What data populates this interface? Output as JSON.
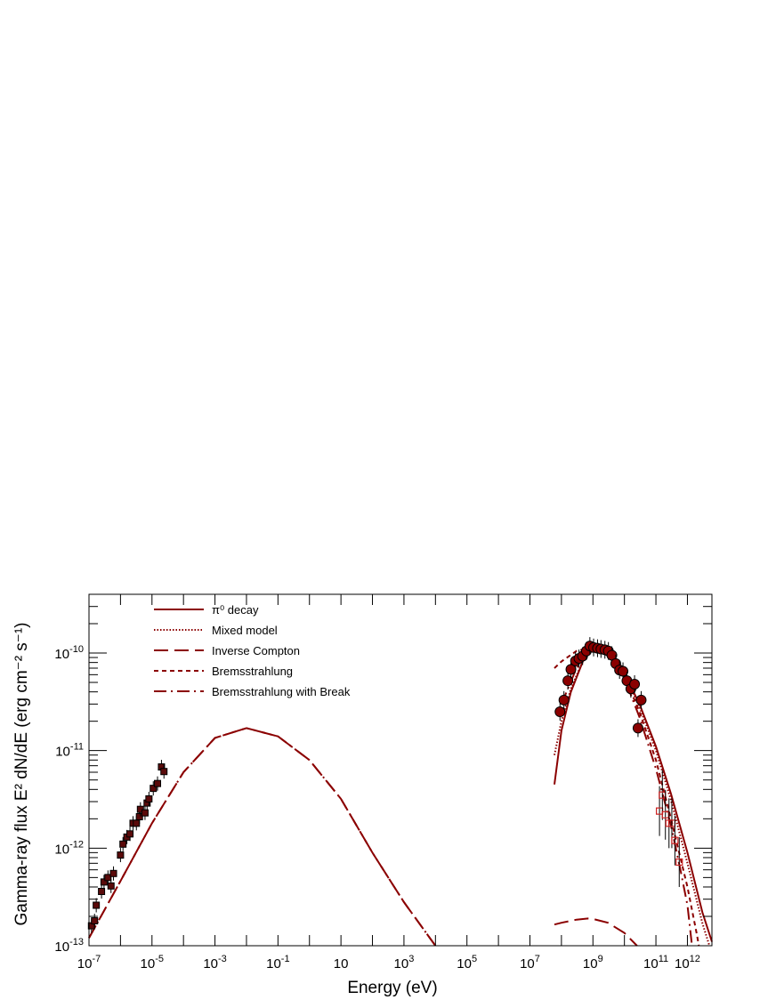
{
  "colors": {
    "model": "#8b0000",
    "marker_fill": "#8b0000",
    "axis": "#000000",
    "error_bar": "#000000",
    "open_marker": "#cc2222"
  },
  "chart_data": {
    "type": "scatter",
    "title": "",
    "xlabel": "Energy (eV)",
    "ylabel": "Gamma-ray flux E² dN/dE (erg cm⁻² s⁻¹)",
    "xscale": "log",
    "yscale": "log",
    "xlim": [
      1e-07,
      6000000000000.0
    ],
    "ylim": [
      1e-13,
      4e-10
    ],
    "grid": false,
    "legend_position": "top-left",
    "x_ticks": [
      {
        "value": 1e-07,
        "base": "10",
        "exp": "-7"
      },
      {
        "value": 1e-05,
        "base": "10",
        "exp": "-5"
      },
      {
        "value": 0.001,
        "base": "10",
        "exp": "-3"
      },
      {
        "value": 0.1,
        "base": "10",
        "exp": "-1"
      },
      {
        "value": 10,
        "base": "10",
        "exp": ""
      },
      {
        "value": 1000.0,
        "base": "10",
        "exp": "3"
      },
      {
        "value": 100000.0,
        "base": "10",
        "exp": "5"
      },
      {
        "value": 10000000.0,
        "base": "10",
        "exp": "7"
      },
      {
        "value": 1000000000.0,
        "base": "10",
        "exp": "9"
      },
      {
        "value": 100000000000.0,
        "base": "10",
        "exp": "11"
      },
      {
        "value": 1000000000000.0,
        "base": "10",
        "exp": "12"
      }
    ],
    "y_ticks": [
      {
        "value": 1e-13,
        "base": "10",
        "exp": "-13"
      },
      {
        "value": 1e-12,
        "base": "10",
        "exp": "-12"
      },
      {
        "value": 1e-11,
        "base": "10",
        "exp": "-11"
      },
      {
        "value": 1e-10,
        "base": "10",
        "exp": "-10"
      }
    ],
    "series": [
      {
        "name": "π⁰ decay",
        "style": "solid",
        "points": [
          [
            60000000.0,
            4.5e-12
          ],
          [
            100000000.0,
            1.6e-11
          ],
          [
            200000000.0,
            4e-11
          ],
          [
            500000000.0,
            8.5e-11
          ],
          [
            1000000000.0,
            1.1e-10
          ],
          [
            3000000000.0,
            1e-10
          ],
          [
            10000000000.0,
            6.2e-11
          ],
          [
            30000000000.0,
            3e-11
          ],
          [
            100000000000.0,
            1.1e-11
          ],
          [
            300000000000.0,
            3.6e-12
          ],
          [
            1000000000000.0,
            9e-13
          ],
          [
            3000000000000.0,
            2.2e-13
          ],
          [
            6000000000000.0,
            1.1e-13
          ]
        ]
      },
      {
        "name": "Mixed model",
        "style": "dotted",
        "points": [
          [
            60000000.0,
            9e-12
          ],
          [
            100000000.0,
            2e-11
          ],
          [
            200000000.0,
            4.3e-11
          ],
          [
            500000000.0,
            8.6e-11
          ],
          [
            1000000000.0,
            1.1e-10
          ],
          [
            3000000000.0,
            1e-10
          ],
          [
            10000000000.0,
            6e-11
          ],
          [
            30000000000.0,
            2.8e-11
          ],
          [
            100000000000.0,
            1e-11
          ],
          [
            300000000000.0,
            3.1e-12
          ],
          [
            1000000000000.0,
            7e-13
          ],
          [
            3000000000000.0,
            1.7e-13
          ],
          [
            5000000000000.0,
            1e-13
          ]
        ]
      },
      {
        "name": "Inverse Compton",
        "style": "longdash",
        "points": [
          [
            60000000.0,
            1.65e-13
          ],
          [
            100000000.0,
            1.72e-13
          ],
          [
            300000000.0,
            1.85e-13
          ],
          [
            700000000.0,
            1.9e-13
          ],
          [
            1000000000.0,
            1.88e-13
          ],
          [
            3000000000.0,
            1.72e-13
          ],
          [
            10000000000.0,
            1.35e-13
          ],
          [
            25000000000.0,
            1e-13
          ]
        ]
      },
      {
        "name": "Inverse Compton",
        "style": "longdash",
        "points": [
          [
            1e-07,
            1.2e-13
          ],
          [
            1e-06,
            4.6e-13
          ],
          [
            1e-05,
            1.8e-12
          ],
          [
            0.0001,
            6e-12
          ],
          [
            0.001,
            1.35e-11
          ],
          [
            0.01,
            1.7e-11
          ],
          [
            0.1,
            1.4e-11
          ],
          [
            1,
            8e-12
          ],
          [
            10,
            3.2e-12
          ],
          [
            100,
            9e-13
          ],
          [
            1000.0,
            2.8e-13
          ],
          [
            10000.0,
            1e-13
          ]
        ]
      },
      {
        "name": "Bremsstrahlung",
        "style": "dashed",
        "points": [
          [
            60000000.0,
            7e-11
          ],
          [
            100000000.0,
            8.2e-11
          ],
          [
            300000000.0,
            1.05e-10
          ],
          [
            1000000000.0,
            1.15e-10
          ],
          [
            3000000000.0,
            9.8e-11
          ],
          [
            10000000000.0,
            5.8e-11
          ],
          [
            30000000000.0,
            2.5e-11
          ],
          [
            100000000000.0,
            8e-12
          ],
          [
            300000000000.0,
            2e-12
          ],
          [
            1000000000000.0,
            4e-13
          ],
          [
            2000000000000.0,
            1.3e-13
          ],
          [
            2300000000000.0,
            1e-13
          ]
        ]
      },
      {
        "name": "Bremsstrahlung with Break",
        "style": "dashdot",
        "points": [
          [
            1e-07,
            1.2e-13
          ],
          [
            1e-06,
            4.6e-13
          ],
          [
            1e-05,
            1.8e-12
          ],
          [
            0.0001,
            6e-12
          ],
          [
            0.001,
            1.35e-11
          ],
          [
            0.01,
            1.7e-11
          ],
          [
            0.1,
            1.4e-11
          ],
          [
            1,
            8e-12
          ],
          [
            10,
            3.2e-12
          ],
          [
            100,
            9e-13
          ],
          [
            1000.0,
            2.8e-13
          ],
          [
            10000.0,
            1e-13
          ]
        ]
      },
      {
        "name": "Bremsstrahlung with Break",
        "style": "dashdot",
        "points": [
          [
            100000000.0,
            3e-11
          ],
          [
            300000000.0,
            7e-11
          ],
          [
            1000000000.0,
            1.1e-10
          ],
          [
            3000000000.0,
            9.6e-11
          ],
          [
            10000000000.0,
            5.5e-11
          ],
          [
            30000000000.0,
            2.2e-11
          ],
          [
            100000000000.0,
            6.5e-12
          ],
          [
            300000000000.0,
            1.7e-12
          ],
          [
            600000000000.0,
            6e-13
          ],
          [
            1000000000000.0,
            2.6e-13
          ],
          [
            1400000000000.0,
            1e-13
          ]
        ]
      }
    ],
    "data_radio": [
      [
        1.2e-07,
        1.6e-13
      ],
      [
        1.5e-07,
        1.8e-13
      ],
      [
        1.7e-07,
        2.6e-13
      ],
      [
        2.5e-07,
        3.6e-13
      ],
      [
        3e-07,
        4.5e-13
      ],
      [
        4e-07,
        5e-13
      ],
      [
        5e-07,
        4.1e-13
      ],
      [
        6e-07,
        5.5e-13
      ],
      [
        1e-06,
        8.5e-13
      ],
      [
        1.2e-06,
        1.1e-12
      ],
      [
        1.6e-06,
        1.3e-12
      ],
      [
        2e-06,
        1.4e-12
      ],
      [
        2.5e-06,
        1.8e-12
      ],
      [
        3.2e-06,
        1.8e-12
      ],
      [
        4e-06,
        2.1e-12
      ],
      [
        4.3e-06,
        2.5e-12
      ],
      [
        6e-06,
        2.3e-12
      ],
      [
        7e-06,
        2.9e-12
      ],
      [
        8e-06,
        3.2e-12
      ],
      [
        1.1e-05,
        4.1e-12
      ],
      [
        1.5e-05,
        4.6e-12
      ],
      [
        2e-05,
        6.8e-12
      ],
      [
        2.4e-05,
        6.1e-12
      ]
    ],
    "data_fermi": [
      [
        90000000.0,
        2.5e-11
      ],
      [
        120000000.0,
        3.3e-11
      ],
      [
        160000000.0,
        5.2e-11
      ],
      [
        200000000.0,
        6.8e-11
      ],
      [
        280000000.0,
        8.3e-11
      ],
      [
        360000000.0,
        8.8e-11
      ],
      [
        470000000.0,
        9.3e-11
      ],
      [
        620000000.0,
        1.05e-10
      ],
      [
        800000000.0,
        1.18e-10
      ],
      [
        1050000000.0,
        1.14e-10
      ],
      [
        1400000000.0,
        1.12e-10
      ],
      [
        1800000000.0,
        1.1e-10
      ],
      [
        2400000000.0,
        1.08e-10
      ],
      [
        3100000000.0,
        1.05e-10
      ],
      [
        4000000000.0,
        9.5e-11
      ],
      [
        5300000000.0,
        7.8e-11
      ],
      [
        7000000000.0,
        6.7e-11
      ],
      [
        9000000000.0,
        6.5e-11
      ],
      [
        12000000000.0,
        5.2e-11
      ],
      [
        16000000000.0,
        4.3e-11
      ],
      [
        21000000000.0,
        4.8e-11
      ],
      [
        27000000000.0,
        1.7e-11
      ],
      [
        34000000000.0,
        3.3e-11
      ]
    ],
    "data_tev": [
      [
        130000000000.0,
        2.4e-12
      ],
      [
        160000000000.0,
        3.5e-12
      ],
      [
        200000000000.0,
        2.2e-12
      ],
      [
        260000000000.0,
        1.8e-12
      ],
      [
        320000000000.0,
        1.8e-12
      ],
      [
        400000000000.0,
        1.2e-12
      ],
      [
        550000000000.0,
        7.2e-13
      ]
    ]
  }
}
